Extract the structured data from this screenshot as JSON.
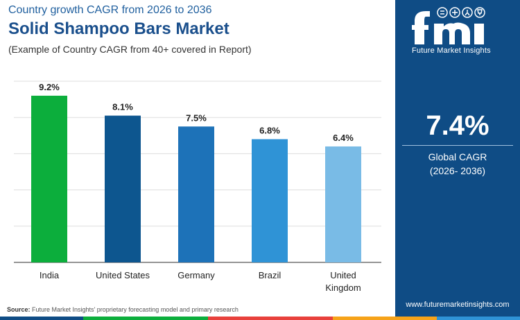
{
  "header": {
    "kicker": "Country growth CAGR from 2026 to 2036",
    "title": "Solid Shampoo Bars Market",
    "subtitle": "(Example of Country CAGR from 40+ covered in Report)"
  },
  "chart_data": {
    "type": "bar",
    "categories": [
      "India",
      "United States",
      "Germany",
      "Brazil",
      "United Kingdom"
    ],
    "category_lines": [
      [
        "India"
      ],
      [
        "United States"
      ],
      [
        "Germany"
      ],
      [
        "Brazil"
      ],
      [
        "United",
        "Kingdom"
      ]
    ],
    "values": [
      9.2,
      8.1,
      7.5,
      6.8,
      6.4
    ],
    "value_labels": [
      "9.2%",
      "8.1%",
      "7.5%",
      "6.8%",
      "6.4%"
    ],
    "colors": [
      "#0cae3c",
      "#0d568f",
      "#1d72b8",
      "#2f93d6",
      "#79bbe6"
    ],
    "ylim": [
      0,
      10
    ],
    "gridlines": [
      0,
      2,
      4,
      6,
      8,
      10
    ],
    "grid": true,
    "xlabel": "",
    "ylabel": ""
  },
  "footer": {
    "source_label": "Source:",
    "source_text": " Future Market Insights' proprietary forecasting model and primary research",
    "strip_colors": [
      "#0f4c85",
      "#0cae3c",
      "#e8413c",
      "#f6a31a",
      "#2f93d6"
    ]
  },
  "panel": {
    "logo_text": "Future Market Insights",
    "global_cagr_value": "7.4%",
    "global_cagr_label": "Global CAGR",
    "global_cagr_period": "(2026- 2036)",
    "website": "www.futuremarketinsights.com",
    "logo_icons": [
      "flag-icon",
      "globe-icon",
      "person-icon",
      "trophy-icon"
    ]
  }
}
